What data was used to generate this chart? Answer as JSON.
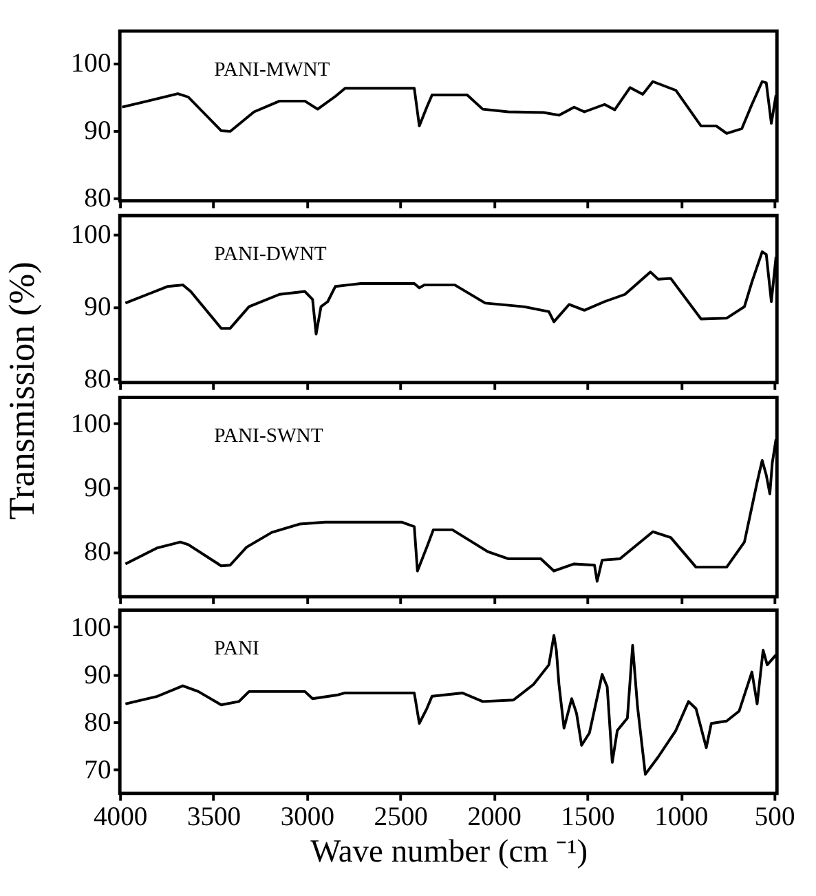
{
  "chart_data": [
    {
      "type": "line",
      "xlim": [
        4000,
        485
      ],
      "xticks": [
        4000,
        3500,
        3000,
        2500,
        2000,
        1500,
        1000,
        500
      ],
      "ylim": [
        79.5,
        104.7
      ],
      "yticks": [
        80,
        90,
        100
      ],
      "tick_labels": "y",
      "grid": false,
      "marker": "none",
      "line_style": "solid",
      "series": [
        {
          "name": "PANI-MWNT",
          "color": "#000000",
          "x": [
            3988,
            3852,
            3690,
            3634,
            3458,
            3410,
            3282,
            3146,
            3010,
            2942,
            2847,
            2795,
            2425,
            2398,
            2358,
            2330,
            2142,
            2059,
            1923,
            1733,
            1651,
            1570,
            1515,
            1407,
            1353,
            1271,
            1203,
            1149,
            1026,
            891,
            809,
            754,
            673,
            619,
            564,
            542,
            515,
            490
          ],
          "values": [
            93.4,
            94.3,
            95.4,
            94.9,
            89.9,
            89.8,
            92.7,
            94.3,
            94.3,
            93.1,
            95.0,
            96.2,
            96.2,
            90.6,
            93.4,
            95.2,
            95.2,
            93.1,
            92.7,
            92.6,
            92.2,
            93.4,
            92.7,
            93.8,
            93.0,
            96.3,
            95.3,
            97.2,
            95.9,
            90.6,
            90.6,
            89.5,
            90.2,
            93.8,
            97.2,
            97.0,
            91.0,
            95.2
          ]
        }
      ]
    },
    {
      "type": "line",
      "xlim": [
        4000,
        485
      ],
      "xticks": [
        4000,
        3500,
        3000,
        2500,
        2000,
        1500,
        1000,
        500
      ],
      "ylim": [
        79.5,
        102.6
      ],
      "yticks": [
        80,
        90,
        100
      ],
      "tick_labels": "y",
      "grid": false,
      "marker": "none",
      "line_style": "solid",
      "ylabel": "Transmission (%)",
      "series": [
        {
          "name": "PANI-DWNT",
          "color": "#000000",
          "x": [
            3970,
            3852,
            3743,
            3663,
            3621,
            3458,
            3410,
            3309,
            3146,
            3010,
            2969,
            2950,
            2924,
            2888,
            2847,
            2711,
            2425,
            2398,
            2371,
            2208,
            2046,
            1841,
            1705,
            1678,
            1597,
            1515,
            1407,
            1298,
            1162,
            1121,
            1053,
            891,
            754,
            659,
            619,
            564,
            542,
            515,
            490
          ],
          "values": [
            90.5,
            91.7,
            92.8,
            93.0,
            92.1,
            87.0,
            87.0,
            90.0,
            91.7,
            92.1,
            91.0,
            86.2,
            90.0,
            90.7,
            92.8,
            93.2,
            93.2,
            92.6,
            93.0,
            93.0,
            90.5,
            90.0,
            89.3,
            87.9,
            90.3,
            89.5,
            90.7,
            91.7,
            94.8,
            93.8,
            93.9,
            88.3,
            88.4,
            90.0,
            93.4,
            97.6,
            97.2,
            90.7,
            96.9
          ]
        }
      ]
    },
    {
      "type": "line",
      "xlim": [
        4000,
        485
      ],
      "xticks": [
        4000,
        3500,
        3000,
        2500,
        2000,
        1500,
        1000,
        500
      ],
      "ylim": [
        73,
        104
      ],
      "yticks": [
        80,
        90,
        100
      ],
      "tick_labels": "y",
      "grid": false,
      "marker": "none",
      "line_style": "solid",
      "series": [
        {
          "name": "PANI-SWNT",
          "color": "#000000",
          "x": [
            3970,
            3799,
            3677,
            3634,
            3458,
            3410,
            3322,
            3187,
            3039,
            2902,
            2493,
            2425,
            2408,
            2358,
            2323,
            2221,
            2032,
            1923,
            1748,
            1678,
            1570,
            1461,
            1447,
            1420,
            1325,
            1149,
            1053,
            918,
            754,
            659,
            591,
            564,
            542,
            523,
            510,
            490
          ],
          "values": [
            78.1,
            80.6,
            81.5,
            81.1,
            77.8,
            77.9,
            80.7,
            83.0,
            84.3,
            84.6,
            84.6,
            83.9,
            77.0,
            80.7,
            83.4,
            83.4,
            80.0,
            78.9,
            78.9,
            77.0,
            78.1,
            77.9,
            75.4,
            78.7,
            78.9,
            83.1,
            82.2,
            77.6,
            77.6,
            81.5,
            90.8,
            94.2,
            91.9,
            89.0,
            93.8,
            97.5
          ]
        }
      ]
    },
    {
      "type": "line",
      "xlim": [
        4000,
        485
      ],
      "xticks": [
        4000,
        3500,
        3000,
        2500,
        2000,
        1500,
        1000,
        500
      ],
      "ylim": [
        65,
        103.5
      ],
      "yticks": [
        70,
        80,
        90,
        100
      ],
      "grid": false,
      "marker": "none",
      "line_style": "solid",
      "xlabel": "Wave number (cm ⁻¹)",
      "series": [
        {
          "name": "PANI",
          "color": "#000000",
          "x": [
            3970,
            3799,
            3663,
            3580,
            3458,
            3363,
            3309,
            3010,
            2969,
            2833,
            2795,
            2425,
            2398,
            2358,
            2330,
            2167,
            2059,
            1895,
            1787,
            1705,
            1678,
            1665,
            1651,
            1624,
            1583,
            1557,
            1530,
            1488,
            1420,
            1393,
            1366,
            1339,
            1285,
            1257,
            1231,
            1189,
            1121,
            1026,
            958,
            918,
            863,
            836,
            754,
            687,
            619,
            591,
            559,
            537,
            490
          ],
          "values": [
            83.8,
            85.4,
            87.6,
            86.4,
            83.6,
            84.3,
            86.4,
            86.4,
            84.9,
            85.7,
            86.1,
            86.1,
            79.7,
            82.8,
            85.4,
            86.1,
            84.3,
            84.6,
            87.9,
            92.0,
            98.2,
            95.1,
            87.9,
            78.7,
            84.9,
            81.8,
            75.1,
            77.7,
            90.0,
            87.4,
            71.5,
            78.2,
            80.8,
            96.1,
            83.3,
            69.0,
            72.6,
            78.2,
            84.3,
            82.8,
            74.6,
            79.7,
            80.2,
            82.3,
            90.5,
            83.8,
            95.1,
            92.0,
            94.1
          ]
        }
      ]
    }
  ]
}
